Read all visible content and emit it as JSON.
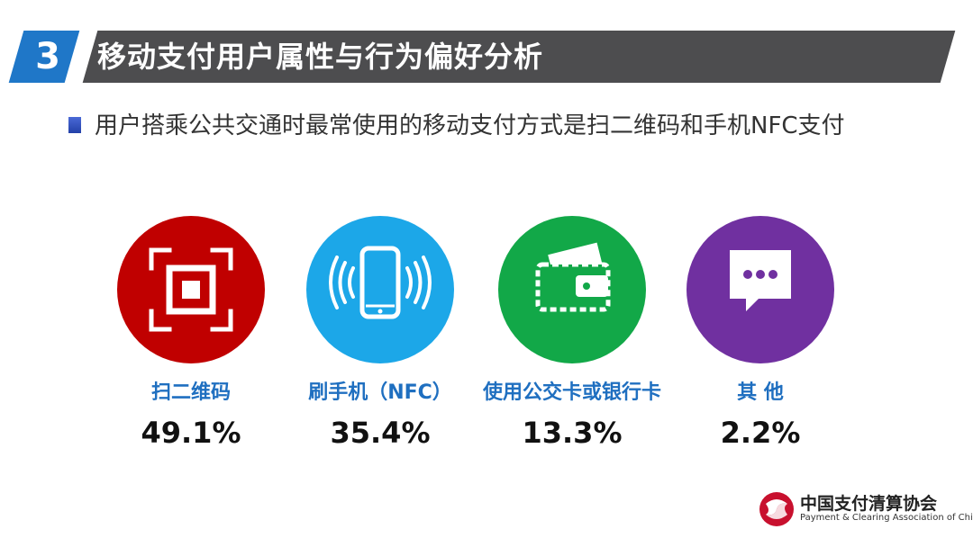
{
  "header": {
    "section_number": "3",
    "title": "移动支付用户属性与行为偏好分析"
  },
  "subtitle": "用户搭乘公共交通时最常使用的移动支付方式是扫二维码和手机NFC支付",
  "items": [
    {
      "label": "扫二维码",
      "value": "49.1%",
      "color": "#c00000",
      "icon": "qr-scan-icon"
    },
    {
      "label": "刷手机（NFC）",
      "value": "35.4%",
      "color": "#1ca7e8",
      "icon": "nfc-phone-icon"
    },
    {
      "label": "使用公交卡或银行卡",
      "value": "13.3%",
      "color": "#12a848",
      "icon": "wallet-card-icon"
    },
    {
      "label": "其 他",
      "value": "2.2%",
      "color": "#7030a0",
      "icon": "chat-bubble-icon"
    }
  ],
  "footer": {
    "org_name_cn": "中国支付清算协会",
    "org_name_en": "Payment & Clearing Association of China"
  }
}
